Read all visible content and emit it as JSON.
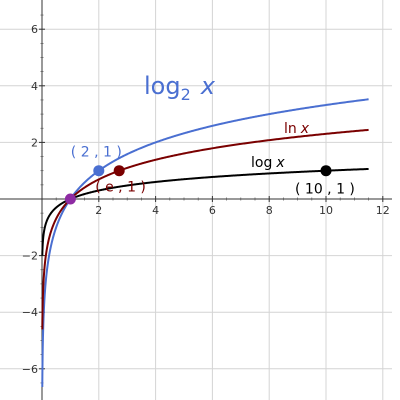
{
  "chart_data": {
    "type": "line",
    "xlim": [
      0,
      12.2
    ],
    "ylim": [
      -7,
      7
    ],
    "x_ticks": [
      2,
      4,
      6,
      8,
      10,
      12
    ],
    "x_tick_labels": [
      "2",
      "4",
      "6",
      "8",
      "10",
      "12"
    ],
    "y_ticks": [
      -6,
      -4,
      -2,
      2,
      4,
      6
    ],
    "y_tick_labels": [
      "−6",
      "−4",
      "−2",
      "2",
      "4",
      "6"
    ],
    "grid": true,
    "series": [
      {
        "name": "log₂ x",
        "base": 2,
        "x_range": [
          0.01,
          11.5
        ],
        "color": "#4a6fd1"
      },
      {
        "name": "ln x",
        "base": 2.718281828,
        "x_range": [
          0.01,
          11.5
        ],
        "color": "#7a0000"
      },
      {
        "name": "log x",
        "base": 10,
        "x_range": [
          0.01,
          11.5
        ],
        "color": "#000000"
      }
    ],
    "curve_labels": {
      "log2_main": "log",
      "log2_sub": "2",
      "log2_var": "x",
      "ln_main": "ln",
      "ln_var": "x",
      "log_main": "log",
      "log_var": "x"
    },
    "points": [
      {
        "x": 1,
        "y": 0,
        "color": "#8e2ba3",
        "label": ""
      },
      {
        "x": 2,
        "y": 1,
        "color": "#4a6fd1",
        "label": "( 2 , 1 )"
      },
      {
        "x": 2.718281828,
        "y": 1,
        "color": "#7a0000",
        "label": "( e , 1 )"
      },
      {
        "x": 10,
        "y": 1,
        "color": "#000000",
        "label": "( 10 , 1 )"
      }
    ]
  }
}
